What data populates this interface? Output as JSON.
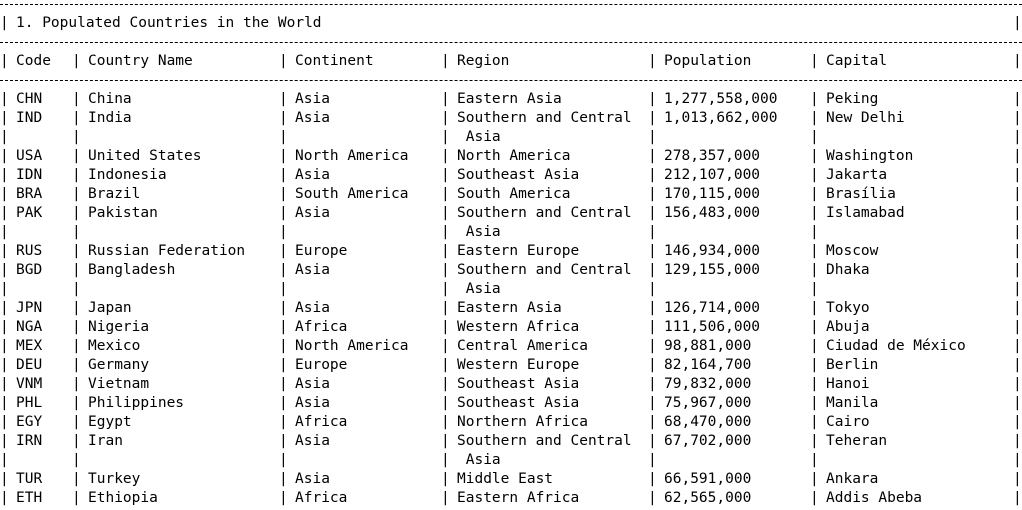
{
  "title": "1. Populated Countries in the World",
  "columns": [
    "Code",
    "Country Name",
    "Continent",
    "Region",
    "Population",
    "Capital"
  ],
  "rows": [
    {
      "code": "CHN",
      "name": "China",
      "continent": "Asia",
      "region": [
        "Eastern Asia"
      ],
      "population": "1,277,558,000",
      "capital": "Peking"
    },
    {
      "code": "IND",
      "name": "India",
      "continent": "Asia",
      "region": [
        "Southern and Central",
        " Asia"
      ],
      "population": "1,013,662,000",
      "capital": "New Delhi"
    },
    {
      "code": "USA",
      "name": "United States",
      "continent": "North America",
      "region": [
        "North America"
      ],
      "population": "278,357,000",
      "capital": "Washington"
    },
    {
      "code": "IDN",
      "name": "Indonesia",
      "continent": "Asia",
      "region": [
        "Southeast Asia"
      ],
      "population": "212,107,000",
      "capital": "Jakarta"
    },
    {
      "code": "BRA",
      "name": "Brazil",
      "continent": "South America",
      "region": [
        "South America"
      ],
      "population": "170,115,000",
      "capital": "Brasília"
    },
    {
      "code": "PAK",
      "name": "Pakistan",
      "continent": "Asia",
      "region": [
        "Southern and Central",
        " Asia"
      ],
      "population": "156,483,000",
      "capital": "Islamabad"
    },
    {
      "code": "RUS",
      "name": "Russian Federation",
      "continent": "Europe",
      "region": [
        "Eastern Europe"
      ],
      "population": "146,934,000",
      "capital": "Moscow"
    },
    {
      "code": "BGD",
      "name": "Bangladesh",
      "continent": "Asia",
      "region": [
        "Southern and Central",
        " Asia"
      ],
      "population": "129,155,000",
      "capital": "Dhaka"
    },
    {
      "code": "JPN",
      "name": "Japan",
      "continent": "Asia",
      "region": [
        "Eastern Asia"
      ],
      "population": "126,714,000",
      "capital": "Tokyo"
    },
    {
      "code": "NGA",
      "name": "Nigeria",
      "continent": "Africa",
      "region": [
        "Western Africa"
      ],
      "population": "111,506,000",
      "capital": "Abuja"
    },
    {
      "code": "MEX",
      "name": "Mexico",
      "continent": "North America",
      "region": [
        "Central America"
      ],
      "population": "98,881,000",
      "capital": "Ciudad de México"
    },
    {
      "code": "DEU",
      "name": "Germany",
      "continent": "Europe",
      "region": [
        "Western Europe"
      ],
      "population": "82,164,700",
      "capital": "Berlin"
    },
    {
      "code": "VNM",
      "name": "Vietnam",
      "continent": "Asia",
      "region": [
        "Southeast Asia"
      ],
      "population": "79,832,000",
      "capital": "Hanoi"
    },
    {
      "code": "PHL",
      "name": "Philippines",
      "continent": "Asia",
      "region": [
        "Southeast Asia"
      ],
      "population": "75,967,000",
      "capital": "Manila"
    },
    {
      "code": "EGY",
      "name": "Egypt",
      "continent": "Africa",
      "region": [
        "Northern Africa"
      ],
      "population": "68,470,000",
      "capital": "Cairo"
    },
    {
      "code": "IRN",
      "name": "Iran",
      "continent": "Asia",
      "region": [
        "Southern and Central",
        " Asia"
      ],
      "population": "67,702,000",
      "capital": "Teheran"
    },
    {
      "code": "TUR",
      "name": "Turkey",
      "continent": "Asia",
      "region": [
        "Middle East"
      ],
      "population": "66,591,000",
      "capital": "Ankara"
    },
    {
      "code": "ETH",
      "name": "Ethiopia",
      "continent": "Africa",
      "region": [
        "Eastern Africa"
      ],
      "population": "62,565,000",
      "capital": "Addis Abeba"
    }
  ]
}
